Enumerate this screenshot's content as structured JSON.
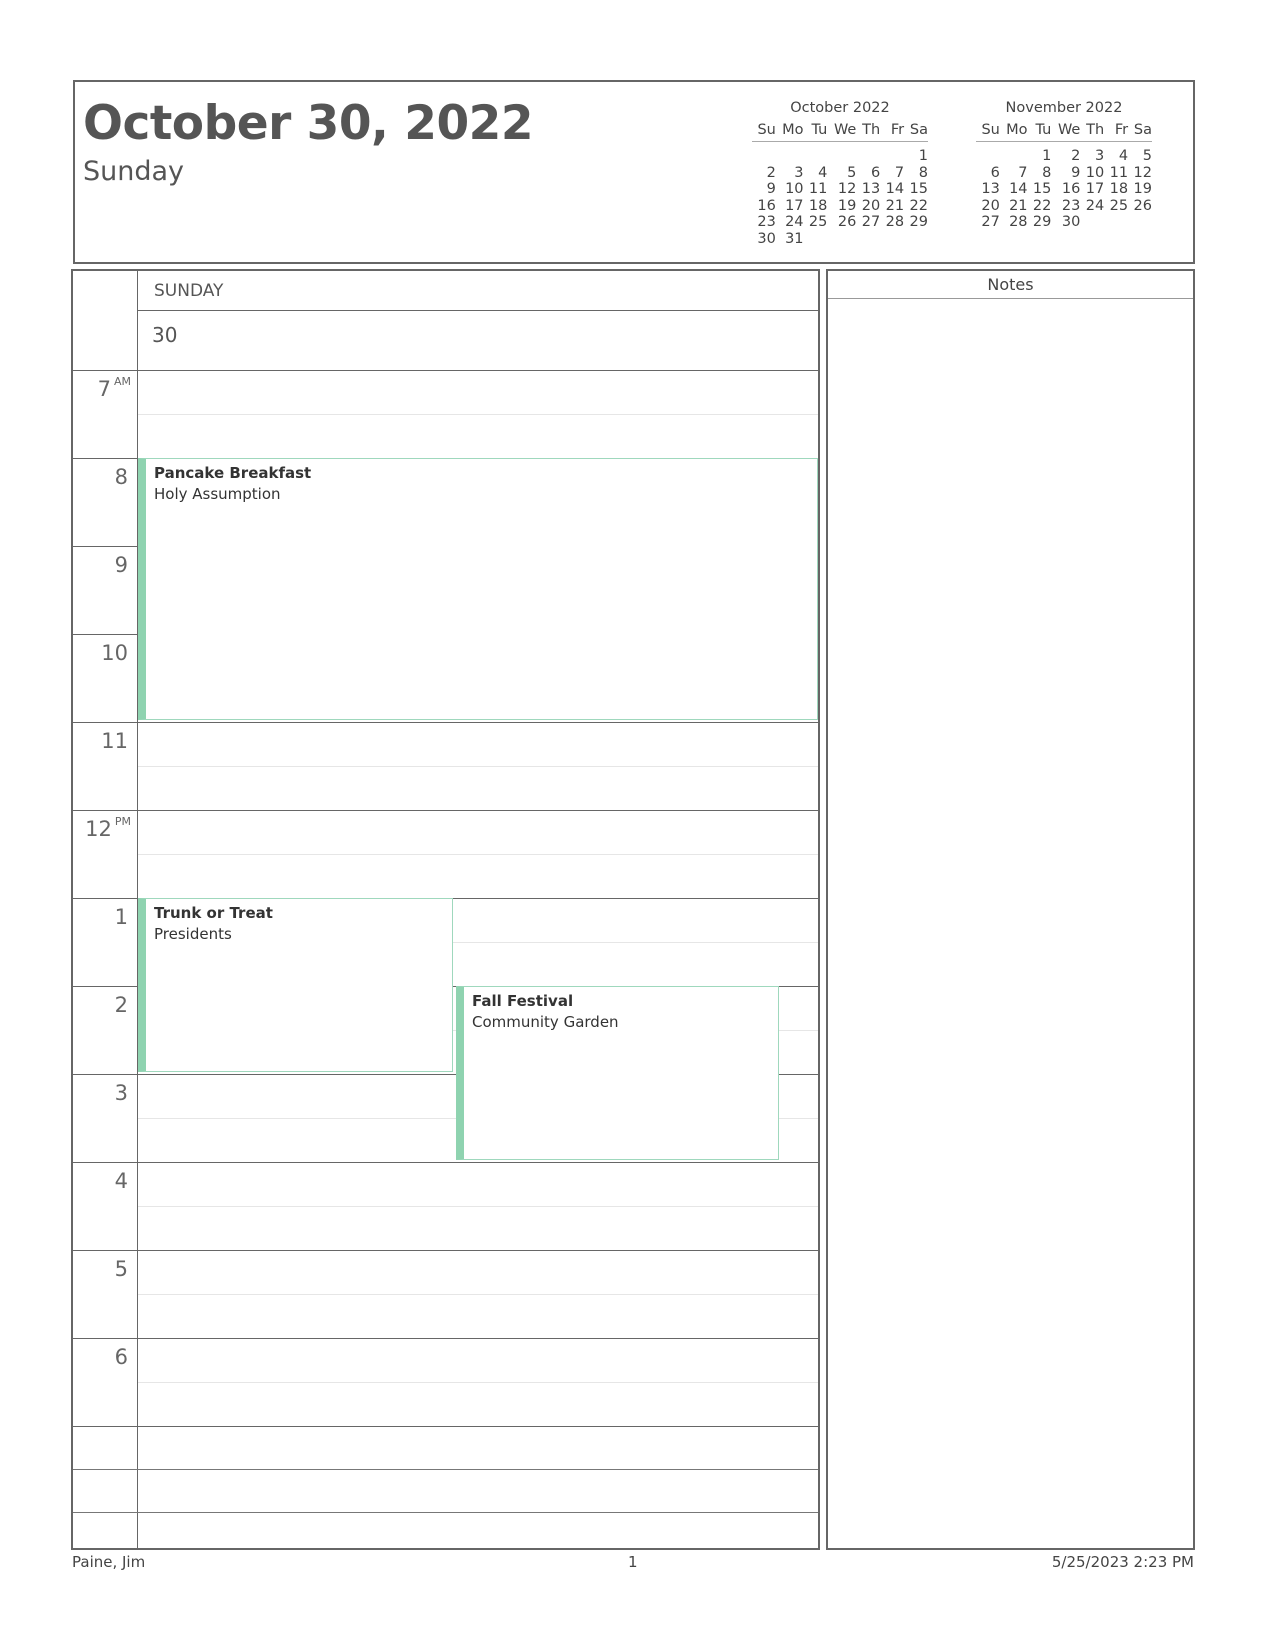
{
  "header": {
    "title": "October 30, 2022",
    "weekday": "Sunday"
  },
  "mini_calendars": [
    {
      "title": "October 2022",
      "days": [
        "Su",
        "Mo",
        "Tu",
        "We",
        "Th",
        "Fr",
        "Sa"
      ],
      "weeks": [
        [
          "",
          "",
          "",
          "",
          "",
          "",
          "1"
        ],
        [
          "2",
          "3",
          "4",
          "5",
          "6",
          "7",
          "8"
        ],
        [
          "9",
          "10",
          "11",
          "12",
          "13",
          "14",
          "15"
        ],
        [
          "16",
          "17",
          "18",
          "19",
          "20",
          "21",
          "22"
        ],
        [
          "23",
          "24",
          "25",
          "26",
          "27",
          "28",
          "29"
        ],
        [
          "30",
          "31",
          "",
          "",
          "",
          "",
          ""
        ]
      ]
    },
    {
      "title": "November 2022",
      "days": [
        "Su",
        "Mo",
        "Tu",
        "We",
        "Th",
        "Fr",
        "Sa"
      ],
      "weeks": [
        [
          "",
          "",
          "1",
          "2",
          "3",
          "4",
          "5"
        ],
        [
          "6",
          "7",
          "8",
          "9",
          "10",
          "11",
          "12"
        ],
        [
          "13",
          "14",
          "15",
          "16",
          "17",
          "18",
          "19"
        ],
        [
          "20",
          "21",
          "22",
          "23",
          "24",
          "25",
          "26"
        ],
        [
          "27",
          "28",
          "29",
          "30",
          "",
          "",
          ""
        ]
      ]
    }
  ],
  "day": {
    "name": "SUNDAY",
    "number": "30"
  },
  "hours": [
    {
      "h": "7",
      "suffix": "AM"
    },
    {
      "h": "8",
      "suffix": ""
    },
    {
      "h": "9",
      "suffix": ""
    },
    {
      "h": "10",
      "suffix": ""
    },
    {
      "h": "11",
      "suffix": ""
    },
    {
      "h": "12",
      "suffix": "PM"
    },
    {
      "h": "1",
      "suffix": ""
    },
    {
      "h": "2",
      "suffix": ""
    },
    {
      "h": "3",
      "suffix": ""
    },
    {
      "h": "4",
      "suffix": ""
    },
    {
      "h": "5",
      "suffix": ""
    },
    {
      "h": "6",
      "suffix": ""
    }
  ],
  "events": [
    {
      "title": "Pancake Breakfast",
      "location": "Holy Assumption",
      "start": "8:00 AM",
      "end": "11:00 AM"
    },
    {
      "title": "Trunk or Treat",
      "location": "Presidents",
      "start": "1:00 PM",
      "end": "3:00 PM"
    },
    {
      "title": "Fall Festival",
      "location": "Community Garden",
      "start": "2:00 PM",
      "end": "4:00 PM"
    }
  ],
  "event_color": "#8fd3b0",
  "notes": {
    "title": "Notes"
  },
  "footer": {
    "owner": "Paine, Jim",
    "page": "1",
    "printed": "5/25/2023 2:23 PM"
  }
}
